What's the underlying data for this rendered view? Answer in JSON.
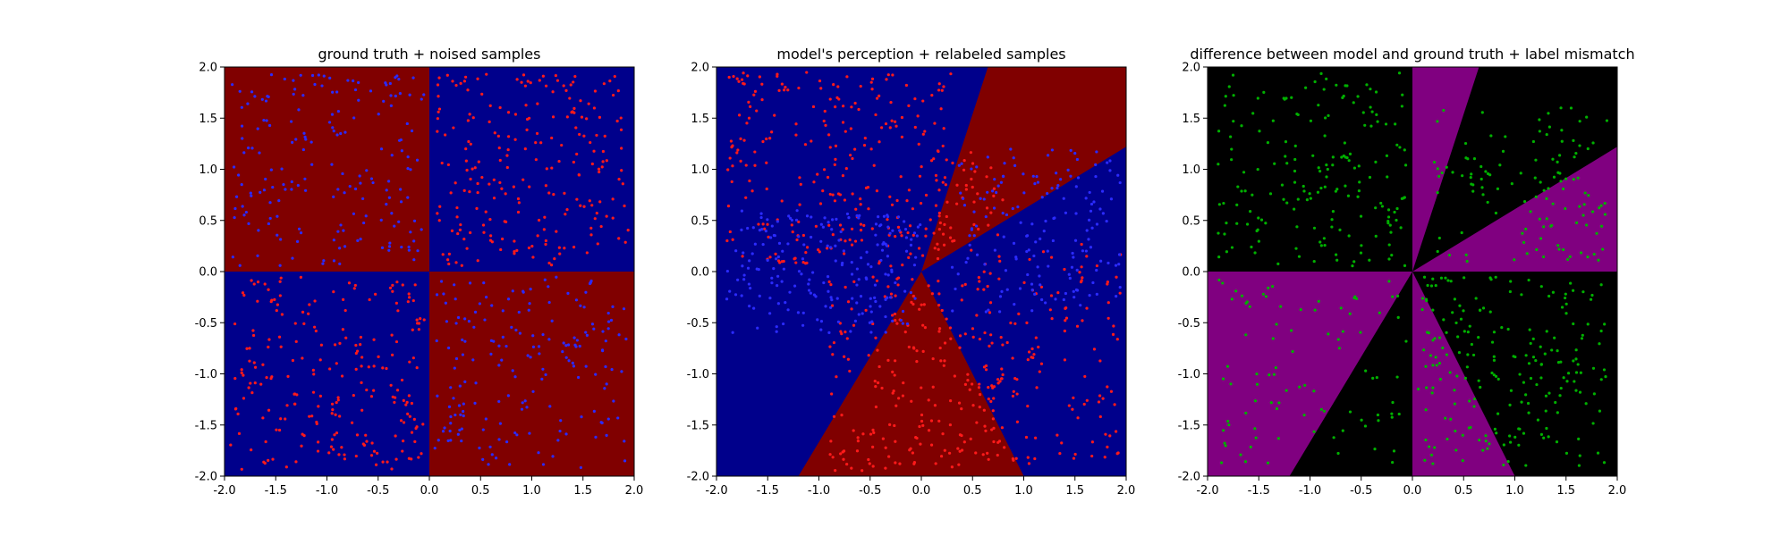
{
  "figure": {
    "background": "#ffffff"
  },
  "chart_data": [
    {
      "type": "scatter",
      "title": "ground truth + noised samples",
      "xlim": [
        -2.0,
        2.0
      ],
      "ylim": [
        -2.0,
        2.0
      ],
      "xticks": [
        "-2.0",
        "-1.5",
        "-1.0",
        "-0.5",
        "0.0",
        "0.5",
        "1.0",
        "1.5",
        "2.0"
      ],
      "yticks": [
        "-2.0",
        "-1.5",
        "-1.0",
        "-0.5",
        "0.0",
        "0.5",
        "1.0",
        "1.5",
        "2.0"
      ],
      "grid": false,
      "colors": {
        "class_red": "#800000",
        "class_blue": "#00008b",
        "point_red": "#ff1a1a",
        "point_blue": "#2b2bff"
      },
      "regions": [
        {
          "name": "top-left",
          "polygon": [
            [
              -2,
              0
            ],
            [
              0,
              0
            ],
            [
              0,
              2
            ],
            [
              -2,
              2
            ]
          ],
          "color": "#800000"
        },
        {
          "name": "top-right",
          "polygon": [
            [
              0,
              0
            ],
            [
              2,
              0
            ],
            [
              2,
              2
            ],
            [
              0,
              2
            ]
          ],
          "color": "#00008b"
        },
        {
          "name": "bottom-left",
          "polygon": [
            [
              -2,
              -2
            ],
            [
              0,
              -2
            ],
            [
              0,
              0
            ],
            [
              -2,
              0
            ]
          ],
          "color": "#00008b"
        },
        {
          "name": "bottom-right",
          "polygon": [
            [
              0,
              -2
            ],
            [
              2,
              -2
            ],
            [
              2,
              0
            ],
            [
              0,
              0
            ]
          ],
          "color": "#800000"
        }
      ],
      "scatter_groups": [
        {
          "name": "red points in top-right",
          "color": "#ff1a1a",
          "xrange": [
            0.05,
            1.95
          ],
          "yrange": [
            0.05,
            1.95
          ],
          "count": 220
        },
        {
          "name": "blue points in top-left",
          "color": "#2b2bff",
          "xrange": [
            -1.95,
            -0.05
          ],
          "yrange": [
            0.05,
            1.95
          ],
          "count": 180
        },
        {
          "name": "red points in bottom-left",
          "color": "#ff1a1a",
          "xrange": [
            -1.95,
            -0.05
          ],
          "yrange": [
            -1.95,
            -0.05
          ],
          "count": 220
        },
        {
          "name": "blue points in bottom-right",
          "color": "#2b2bff",
          "xrange": [
            0.05,
            1.95
          ],
          "yrange": [
            -1.95,
            -0.05
          ],
          "count": 180
        }
      ]
    },
    {
      "type": "scatter",
      "title": "model's perception + relabeled samples",
      "xlim": [
        -2.0,
        2.0
      ],
      "ylim": [
        -2.0,
        2.0
      ],
      "xticks": [
        "-2.0",
        "-1.5",
        "-1.0",
        "-0.5",
        "0.0",
        "0.5",
        "1.0",
        "1.5",
        "2.0"
      ],
      "yticks": [
        "-2.0",
        "-1.5",
        "-1.0",
        "-0.5",
        "0.0",
        "0.5",
        "1.0",
        "1.5",
        "2.0"
      ],
      "grid": false,
      "colors": {
        "class_red": "#800000",
        "class_blue": "#00008b",
        "point_red": "#ff1a1a",
        "point_blue": "#2b2bff"
      },
      "background_region_color": "#00008b",
      "regions": [
        {
          "name": "upper red wedge",
          "polygon": [
            [
              0,
              0
            ],
            [
              0.65,
              2
            ],
            [
              2,
              2
            ],
            [
              2,
              1.22
            ]
          ],
          "color": "#800000"
        },
        {
          "name": "lower red wedge",
          "polygon": [
            [
              0,
              0
            ],
            [
              -1.2,
              -2
            ],
            [
              1.0,
              -2
            ]
          ],
          "color": "#800000"
        }
      ],
      "scatter_groups": [
        {
          "name": "red points upper-left",
          "color": "#ff1a1a",
          "xrange": [
            -1.9,
            0.3
          ],
          "yrange": [
            0.05,
            1.95
          ],
          "count": 260
        },
        {
          "name": "red points lower wedge",
          "color": "#ff1a1a",
          "xrange": [
            -0.9,
            0.8
          ],
          "yrange": [
            -1.95,
            -0.05
          ],
          "count": 220
        },
        {
          "name": "red points lower-right",
          "color": "#ff1a1a",
          "xrange": [
            0.6,
            1.95
          ],
          "yrange": [
            -1.9,
            0.3
          ],
          "count": 120
        },
        {
          "name": "red points upper wedge",
          "color": "#ff1a1a",
          "xrange": [
            0.1,
            0.8
          ],
          "yrange": [
            0.2,
            1.2
          ],
          "count": 40
        },
        {
          "name": "blue points left",
          "color": "#2b2bff",
          "xrange": [
            -1.9,
            0.0
          ],
          "yrange": [
            -0.6,
            0.6
          ],
          "count": 200
        },
        {
          "name": "blue points right",
          "color": "#2b2bff",
          "xrange": [
            0.3,
            1.95
          ],
          "yrange": [
            -0.4,
            1.2
          ],
          "count": 160
        }
      ]
    },
    {
      "type": "scatter",
      "title": "difference between model and ground truth + label mismatch",
      "xlim": [
        -2.0,
        2.0
      ],
      "ylim": [
        -2.0,
        2.0
      ],
      "xticks": [
        "-2.0",
        "-1.5",
        "-1.0",
        "-0.5",
        "0.0",
        "0.5",
        "1.0",
        "1.5",
        "2.0"
      ],
      "yticks": [
        "-2.0",
        "-1.5",
        "-1.0",
        "-0.5",
        "0.0",
        "0.5",
        "1.0",
        "1.5",
        "2.0"
      ],
      "grid": false,
      "colors": {
        "agree": "#000000",
        "disagree": "#800080",
        "point": "#00b000"
      },
      "background_region_color": "#000000",
      "regions": [
        {
          "name": "upper purple wedge",
          "polygon": [
            [
              0,
              0
            ],
            [
              0,
              2
            ],
            [
              0.65,
              2
            ]
          ],
          "color": "#800080"
        },
        {
          "name": "right purple wedge",
          "polygon": [
            [
              0,
              0
            ],
            [
              2,
              1.22
            ],
            [
              2,
              0
            ]
          ],
          "color": "#800080"
        },
        {
          "name": "left purple wedge",
          "polygon": [
            [
              0,
              0
            ],
            [
              -2,
              0
            ],
            [
              -2,
              -2
            ],
            [
              -1.2,
              -2
            ]
          ],
          "color": "#800080"
        },
        {
          "name": "lower purple wedge",
          "polygon": [
            [
              0,
              0
            ],
            [
              0,
              -2
            ],
            [
              1.0,
              -2
            ]
          ],
          "color": "#800080"
        }
      ],
      "scatter_groups": [
        {
          "name": "mismatch upper-left",
          "color": "#00b000",
          "xrange": [
            -1.9,
            -0.05
          ],
          "yrange": [
            0.05,
            1.95
          ],
          "count": 180
        },
        {
          "name": "mismatch upper-right",
          "color": "#00b000",
          "xrange": [
            0.2,
            1.9
          ],
          "yrange": [
            0.1,
            1.6
          ],
          "count": 120
        },
        {
          "name": "mismatch lower-left",
          "color": "#00b000",
          "xrange": [
            -1.9,
            -0.05
          ],
          "yrange": [
            -1.9,
            -0.05
          ],
          "count": 90
        },
        {
          "name": "mismatch lower-right",
          "color": "#00b000",
          "xrange": [
            0.05,
            1.9
          ],
          "yrange": [
            -1.9,
            -0.05
          ],
          "count": 210
        }
      ]
    }
  ]
}
